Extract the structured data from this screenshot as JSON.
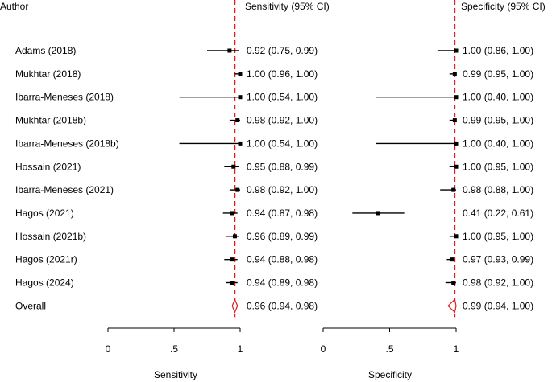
{
  "chart_data": {
    "type": "forest",
    "header": {
      "author": "Author",
      "sensitivity": "Sensitivity (95% CI)",
      "specificity": "Specificity (95% CI)"
    },
    "studies": [
      {
        "name": "Adams (2018)",
        "sens": {
          "est": 0.92,
          "lo": 0.75,
          "hi": 0.99,
          "label": "0.92 (0.75, 0.99)"
        },
        "spec": {
          "est": 1.0,
          "lo": 0.86,
          "hi": 1.0,
          "label": "1.00 (0.86, 1.00)"
        }
      },
      {
        "name": "Mukhtar (2018)",
        "sens": {
          "est": 1.0,
          "lo": 0.96,
          "hi": 1.0,
          "label": "1.00 (0.96, 1.00)"
        },
        "spec": {
          "est": 0.99,
          "lo": 0.95,
          "hi": 1.0,
          "label": "0.99 (0.95, 1.00)"
        }
      },
      {
        "name": "Ibarra-Meneses (2018)",
        "sens": {
          "est": 1.0,
          "lo": 0.54,
          "hi": 1.0,
          "label": "1.00 (0.54, 1.00)"
        },
        "spec": {
          "est": 1.0,
          "lo": 0.4,
          "hi": 1.0,
          "label": "1.00 (0.40, 1.00)"
        }
      },
      {
        "name": "Mukhtar (2018b)",
        "sens": {
          "est": 0.98,
          "lo": 0.92,
          "hi": 1.0,
          "label": "0.98 (0.92, 1.00)"
        },
        "spec": {
          "est": 0.99,
          "lo": 0.95,
          "hi": 1.0,
          "label": "0.99 (0.95, 1.00)"
        }
      },
      {
        "name": "Ibarra-Meneses (2018b)",
        "sens": {
          "est": 1.0,
          "lo": 0.54,
          "hi": 1.0,
          "label": "1.00 (0.54, 1.00)"
        },
        "spec": {
          "est": 1.0,
          "lo": 0.4,
          "hi": 1.0,
          "label": "1.00 (0.40, 1.00)"
        }
      },
      {
        "name": "Hossain (2021)",
        "sens": {
          "est": 0.95,
          "lo": 0.88,
          "hi": 0.99,
          "label": "0.95 (0.88, 0.99)"
        },
        "spec": {
          "est": 1.0,
          "lo": 0.95,
          "hi": 1.0,
          "label": "1.00 (0.95, 1.00)"
        }
      },
      {
        "name": "Ibarra-Meneses (2021)",
        "sens": {
          "est": 0.98,
          "lo": 0.92,
          "hi": 1.0,
          "label": "0.98 (0.92, 1.00)"
        },
        "spec": {
          "est": 0.98,
          "lo": 0.88,
          "hi": 1.0,
          "label": "0.98 (0.88, 1.00)"
        }
      },
      {
        "name": "Hagos (2021)",
        "sens": {
          "est": 0.94,
          "lo": 0.87,
          "hi": 0.98,
          "label": "0.94 (0.87, 0.98)"
        },
        "spec": {
          "est": 0.41,
          "lo": 0.22,
          "hi": 0.61,
          "label": "0.41 (0.22, 0.61)"
        }
      },
      {
        "name": "Hossain (2021b)",
        "sens": {
          "est": 0.96,
          "lo": 0.89,
          "hi": 0.99,
          "label": "0.96 (0.89, 0.99)"
        },
        "spec": {
          "est": 1.0,
          "lo": 0.95,
          "hi": 1.0,
          "label": "1.00 (0.95, 1.00)"
        }
      },
      {
        "name": "Hagos (2021r)",
        "sens": {
          "est": 0.94,
          "lo": 0.88,
          "hi": 0.98,
          "label": "0.94 (0.88, 0.98)"
        },
        "spec": {
          "est": 0.97,
          "lo": 0.93,
          "hi": 0.99,
          "label": "0.97 (0.93, 0.99)"
        }
      },
      {
        "name": "Hagos (2024)",
        "sens": {
          "est": 0.94,
          "lo": 0.89,
          "hi": 0.98,
          "label": "0.94 (0.89, 0.98)"
        },
        "spec": {
          "est": 0.98,
          "lo": 0.92,
          "hi": 1.0,
          "label": "0.98 (0.92, 1.00)"
        }
      }
    ],
    "overall": {
      "name": "Overall",
      "sens": {
        "est": 0.96,
        "lo": 0.94,
        "hi": 0.98,
        "label": "0.96 (0.94, 0.98)"
      },
      "spec": {
        "est": 0.99,
        "lo": 0.94,
        "hi": 1.0,
        "label": "0.99 (0.94, 1.00)"
      }
    },
    "reference_lines": {
      "sensitivity": 0.96,
      "specificity": 0.99
    },
    "axes": {
      "xlim": [
        0,
        1
      ],
      "ticks": [
        0,
        0.5,
        1
      ],
      "tick_labels": [
        "0",
        ".5",
        "1"
      ],
      "sensitivity_label": "Sensitivity",
      "specificity_label": "Specificity"
    },
    "colors": {
      "reference": "#e41a1c",
      "marker": "#000000",
      "diamond": "#e41a1c"
    }
  }
}
